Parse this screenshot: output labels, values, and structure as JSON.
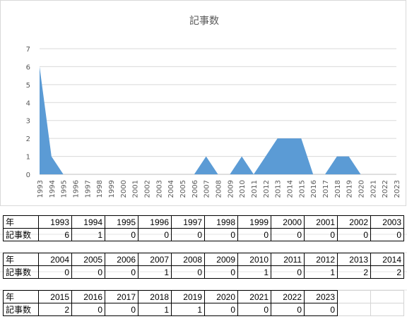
{
  "chart_data": {
    "type": "area",
    "title": "記事数",
    "x": [
      1993,
      1994,
      1995,
      1996,
      1997,
      1998,
      1999,
      2000,
      2001,
      2002,
      2003,
      2004,
      2005,
      2006,
      2007,
      2008,
      2009,
      2010,
      2011,
      2012,
      2013,
      2014,
      2015,
      2016,
      2017,
      2018,
      2019,
      2020,
      2021,
      2022,
      2023
    ],
    "x_tick_labels": [
      "1993",
      "1994",
      "1995",
      "1996",
      "1997",
      "1998",
      "1999",
      "2000",
      "2001",
      "2002",
      "2003",
      "2004",
      "2005",
      "2006",
      "2007",
      "2008",
      "2009",
      "2010",
      "2011",
      "2012",
      "2013",
      "2014",
      "2015",
      "2016",
      "2017",
      "2018",
      "2019",
      "2020",
      "2021",
      "2022",
      "2023"
    ],
    "values": [
      6,
      1,
      0,
      0,
      0,
      0,
      0,
      0,
      0,
      0,
      0,
      0,
      0,
      0,
      1,
      0,
      0,
      1,
      0,
      1,
      2,
      2,
      2,
      0,
      0,
      1,
      1,
      0,
      0,
      0,
      0
    ],
    "y_tick_labels": [
      "0",
      "1",
      "2",
      "3",
      "4",
      "5",
      "6",
      "7"
    ],
    "ylim": [
      0,
      7
    ],
    "grid": true,
    "color": "#5b9bd5",
    "legend": "none"
  },
  "tables": [
    {
      "row_label_year": "年",
      "row_label_count": "記事数",
      "years": [
        "1993",
        "1994",
        "1995",
        "1996",
        "1997",
        "1998",
        "1999",
        "2000",
        "2001",
        "2002",
        "2003"
      ],
      "counts": [
        "6",
        "1",
        "0",
        "0",
        "0",
        "0",
        "0",
        "0",
        "0",
        "0",
        "0"
      ]
    },
    {
      "row_label_year": "年",
      "row_label_count": "記事数",
      "years": [
        "2004",
        "2005",
        "2006",
        "2007",
        "2008",
        "2009",
        "2010",
        "2011",
        "2012",
        "2013",
        "2014"
      ],
      "counts": [
        "0",
        "0",
        "0",
        "1",
        "0",
        "0",
        "1",
        "0",
        "1",
        "2",
        "2"
      ]
    },
    {
      "row_label_year": "年",
      "row_label_count": "記事数",
      "years": [
        "2015",
        "2016",
        "2017",
        "2018",
        "2019",
        "2020",
        "2021",
        "2022",
        "2023"
      ],
      "counts": [
        "2",
        "0",
        "0",
        "1",
        "1",
        "0",
        "0",
        "0",
        "0"
      ]
    }
  ]
}
